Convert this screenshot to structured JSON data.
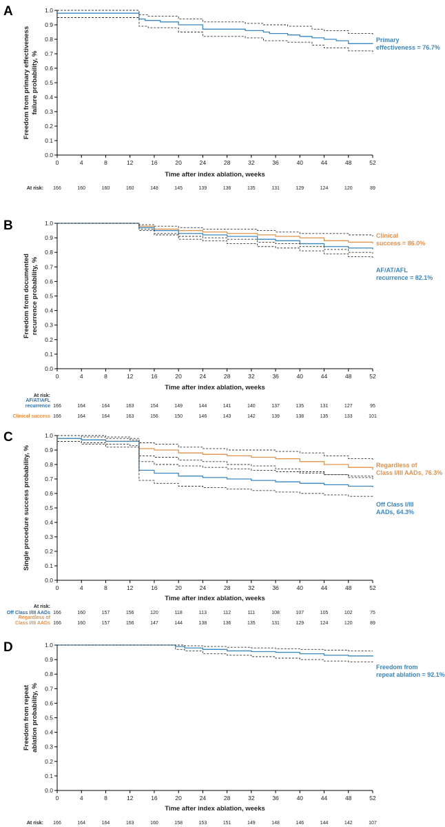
{
  "colors": {
    "blue": "#3a87c0",
    "orange": "#e0924a",
    "ci": "#333333",
    "axis": "#000000",
    "risk_blue": "#2f6fa6"
  },
  "x_axis_label": "Time after index ablation, weeks",
  "at_risk_label": "At risk:",
  "chart_data": [
    {
      "type": "line",
      "title": "A",
      "xlabel": "Time after index ablation, weeks",
      "ylabel": [
        "Freedom from primary effectiveness",
        "failure probability, %"
      ],
      "xlim": [
        0,
        52
      ],
      "ylim": [
        0,
        1.0
      ],
      "xticks": [
        0,
        4,
        8,
        12,
        16,
        20,
        24,
        28,
        32,
        36,
        40,
        44,
        48,
        52
      ],
      "yticks": [
        0.0,
        0.1,
        0.2,
        0.3,
        0.4,
        0.5,
        0.6,
        0.7,
        0.8,
        0.9,
        1.0
      ],
      "series": [
        {
          "name": "Primary effectiveness = 76.7%",
          "color": "#3a87c0",
          "style": "solid",
          "x": [
            0,
            13,
            13.5,
            14.5,
            17,
            20,
            24,
            31,
            34,
            35,
            38,
            40,
            42,
            44,
            46,
            48,
            52
          ],
          "y": [
            0.98,
            0.98,
            0.94,
            0.93,
            0.92,
            0.9,
            0.87,
            0.86,
            0.85,
            0.84,
            0.83,
            0.82,
            0.81,
            0.8,
            0.79,
            0.77,
            0.767
          ]
        },
        {
          "color": "#333333",
          "style": "dashed",
          "x": [
            0,
            13,
            13.5,
            15,
            20,
            24,
            31,
            34,
            38,
            42,
            44,
            48,
            52
          ],
          "y": [
            1.0,
            1.0,
            0.97,
            0.96,
            0.94,
            0.92,
            0.91,
            0.9,
            0.89,
            0.87,
            0.86,
            0.84,
            0.83
          ]
        },
        {
          "color": "#333333",
          "style": "dashed",
          "x": [
            0,
            13,
            13.5,
            15,
            20,
            24,
            31,
            34,
            38,
            42,
            44,
            48,
            52
          ],
          "y": [
            0.95,
            0.95,
            0.89,
            0.88,
            0.85,
            0.82,
            0.81,
            0.79,
            0.78,
            0.76,
            0.74,
            0.72,
            0.7
          ]
        }
      ],
      "annotations": [
        {
          "lines": [
            "Primary",
            "effectiveness = 76.7%"
          ],
          "color": "#3a87c0"
        }
      ],
      "at_risk": [
        {
          "label": "",
          "color": "#222222",
          "values": [
            "166",
            "160",
            "160",
            "160",
            "148",
            "145",
            "139",
            "136",
            "135",
            "131",
            "129",
            "124",
            "120",
            "89"
          ]
        }
      ]
    },
    {
      "type": "line",
      "title": "B",
      "xlabel": "Time after index ablation, weeks",
      "ylabel": [
        "Freedom from documented",
        "recurrence probability, %"
      ],
      "xlim": [
        0,
        52
      ],
      "ylim": [
        0,
        1.0
      ],
      "xticks": [
        0,
        4,
        8,
        12,
        16,
        20,
        24,
        28,
        32,
        36,
        40,
        44,
        48,
        52
      ],
      "yticks": [
        0.0,
        0.1,
        0.2,
        0.3,
        0.4,
        0.5,
        0.6,
        0.7,
        0.8,
        0.9,
        1.0
      ],
      "series": [
        {
          "name": "Clinical success = 86.0%",
          "color": "#e0924a",
          "style": "solid",
          "x": [
            0,
            13,
            13.5,
            16,
            20,
            24,
            28,
            33,
            36,
            40,
            44,
            48,
            52
          ],
          "y": [
            1.0,
            1.0,
            0.98,
            0.96,
            0.95,
            0.94,
            0.93,
            0.92,
            0.91,
            0.9,
            0.88,
            0.87,
            0.86
          ]
        },
        {
          "name": "AF/AT/AFL recurrence = 82.1%",
          "color": "#3a87c0",
          "style": "solid",
          "x": [
            0,
            13,
            13.5,
            16,
            20,
            24,
            28,
            33,
            36,
            40,
            44,
            48,
            52
          ],
          "y": [
            1.0,
            1.0,
            0.97,
            0.95,
            0.93,
            0.92,
            0.91,
            0.89,
            0.88,
            0.86,
            0.84,
            0.83,
            0.821
          ]
        },
        {
          "color": "#333333",
          "style": "dashed",
          "x": [
            0,
            13,
            13.5,
            16,
            20,
            24,
            28,
            33,
            36,
            40,
            44,
            48,
            52
          ],
          "y": [
            1.0,
            1.0,
            0.99,
            0.98,
            0.97,
            0.96,
            0.96,
            0.95,
            0.94,
            0.93,
            0.93,
            0.92,
            0.91
          ]
        },
        {
          "color": "#333333",
          "style": "dashed",
          "x": [
            0,
            13,
            13.5,
            16,
            20,
            24,
            28,
            33,
            36,
            40,
            44,
            48,
            52
          ],
          "y": [
            1.0,
            1.0,
            0.96,
            0.93,
            0.91,
            0.9,
            0.89,
            0.87,
            0.86,
            0.84,
            0.82,
            0.8,
            0.79
          ]
        },
        {
          "color": "#333333",
          "style": "dashed",
          "x": [
            0,
            13,
            13.5,
            16,
            20,
            24,
            28,
            33,
            36,
            40,
            44,
            48,
            52
          ],
          "y": [
            1.0,
            1.0,
            0.95,
            0.92,
            0.89,
            0.88,
            0.86,
            0.84,
            0.83,
            0.81,
            0.79,
            0.77,
            0.76
          ]
        }
      ],
      "annotations": [
        {
          "lines": [
            "Clinical",
            "success = 86.0%"
          ],
          "color": "#e0924a"
        },
        {
          "lines": [
            "AF/AT/AFL",
            "recurrence = 82.1%"
          ],
          "color": "#3a87c0"
        }
      ],
      "at_risk": [
        {
          "label": [
            "AF/AT/AFL",
            "recurrence"
          ],
          "color": "#2f6fa6",
          "values": [
            "166",
            "164",
            "164",
            "163",
            "154",
            "149",
            "144",
            "141",
            "140",
            "137",
            "135",
            "131",
            "127",
            "95"
          ]
        },
        {
          "label": [
            "Clinical success"
          ],
          "color": "#e0924a",
          "values": [
            "166",
            "164",
            "164",
            "163",
            "156",
            "150",
            "146",
            "143",
            "142",
            "139",
            "138",
            "135",
            "133",
            "101"
          ]
        }
      ]
    },
    {
      "type": "line",
      "title": "C",
      "xlabel": "Time after index ablation, weeks",
      "ylabel": [
        "Single procedure success probability, %"
      ],
      "xlim": [
        0,
        52
      ],
      "ylim": [
        0,
        1.0
      ],
      "xticks": [
        0,
        4,
        8,
        12,
        16,
        20,
        24,
        28,
        32,
        36,
        40,
        44,
        48,
        52
      ],
      "yticks": [
        0.0,
        0.1,
        0.2,
        0.3,
        0.4,
        0.5,
        0.6,
        0.7,
        0.8,
        0.9,
        1.0
      ],
      "series": [
        {
          "name": "Regardless of Class I/III AADs, 76.3%",
          "color": "#e0924a",
          "style": "solid",
          "x": [
            0,
            4,
            8,
            12,
            13,
            13.5,
            16,
            20,
            24,
            28,
            32,
            36,
            40,
            44,
            48,
            52
          ],
          "y": [
            0.98,
            0.97,
            0.96,
            0.96,
            0.96,
            0.91,
            0.9,
            0.88,
            0.87,
            0.86,
            0.85,
            0.84,
            0.82,
            0.8,
            0.78,
            0.763
          ]
        },
        {
          "name": "Off Class I/III AADs, 64.3%",
          "color": "#3a87c0",
          "style": "solid",
          "x": [
            0,
            4,
            8,
            12,
            13,
            13.5,
            16,
            20,
            24,
            28,
            32,
            36,
            40,
            44,
            48,
            52
          ],
          "y": [
            0.98,
            0.97,
            0.96,
            0.96,
            0.96,
            0.76,
            0.74,
            0.72,
            0.71,
            0.7,
            0.69,
            0.68,
            0.67,
            0.66,
            0.65,
            0.643
          ]
        },
        {
          "color": "#333333",
          "style": "dashed",
          "x": [
            0,
            4,
            8,
            12,
            13,
            13.5,
            16,
            20,
            24,
            28,
            32,
            36,
            40,
            44,
            48,
            52
          ],
          "y": [
            1.0,
            1.0,
            0.99,
            0.98,
            0.98,
            0.95,
            0.94,
            0.92,
            0.91,
            0.9,
            0.9,
            0.89,
            0.88,
            0.86,
            0.84,
            0.83
          ]
        },
        {
          "color": "#333333",
          "style": "dashed",
          "x": [
            0,
            4,
            8,
            12,
            13,
            13.5,
            16,
            20,
            24,
            28,
            32,
            36,
            40,
            44,
            48,
            52
          ],
          "y": [
            0.96,
            0.95,
            0.94,
            0.93,
            0.93,
            0.86,
            0.85,
            0.83,
            0.82,
            0.8,
            0.79,
            0.77,
            0.75,
            0.73,
            0.71,
            0.69
          ]
        },
        {
          "color": "#333333",
          "style": "dashed",
          "x": [
            0,
            4,
            8,
            12,
            13,
            13.5,
            16,
            20,
            24,
            28,
            32,
            36,
            40,
            44,
            48,
            52
          ],
          "y": [
            1.0,
            0.99,
            0.98,
            0.97,
            0.97,
            0.82,
            0.8,
            0.79,
            0.78,
            0.77,
            0.76,
            0.75,
            0.74,
            0.73,
            0.72,
            0.71
          ]
        },
        {
          "color": "#333333",
          "style": "dashed",
          "x": [
            0,
            4,
            8,
            12,
            13,
            13.5,
            16,
            20,
            24,
            28,
            32,
            36,
            40,
            44,
            48,
            52
          ],
          "y": [
            0.96,
            0.94,
            0.92,
            0.92,
            0.92,
            0.69,
            0.67,
            0.65,
            0.64,
            0.63,
            0.62,
            0.61,
            0.6,
            0.59,
            0.58,
            0.57
          ]
        }
      ],
      "annotations": [
        {
          "lines": [
            "Regardless of",
            "Class I/III AADs, 76.3%"
          ],
          "color": "#e0924a"
        },
        {
          "lines": [
            "Off Class I/III",
            "AADs, 64.3%"
          ],
          "color": "#3a87c0"
        }
      ],
      "at_risk": [
        {
          "label": [
            "Off Class I/III AADs"
          ],
          "color": "#2f6fa6",
          "values": [
            "166",
            "160",
            "157",
            "156",
            "120",
            "118",
            "113",
            "112",
            "111",
            "108",
            "107",
            "105",
            "102",
            "75"
          ]
        },
        {
          "label": [
            "Regardless of",
            "Class I/III AADs"
          ],
          "color": "#e0924a",
          "values": [
            "166",
            "160",
            "157",
            "156",
            "147",
            "144",
            "138",
            "136",
            "135",
            "131",
            "129",
            "124",
            "120",
            "89"
          ]
        }
      ]
    },
    {
      "type": "line",
      "title": "D",
      "xlabel": "Time after index ablation, weeks",
      "ylabel": [
        "Freedom from repeat",
        "ablation probability, %"
      ],
      "xlim": [
        0,
        52
      ],
      "ylim": [
        0,
        1.0
      ],
      "xticks": [
        0,
        4,
        8,
        12,
        16,
        20,
        24,
        28,
        32,
        36,
        40,
        44,
        48,
        52
      ],
      "yticks": [
        0.0,
        0.1,
        0.2,
        0.3,
        0.4,
        0.5,
        0.6,
        0.7,
        0.8,
        0.9,
        1.0
      ],
      "series": [
        {
          "name": "Freedom from repeat ablation = 92.1%",
          "color": "#3a87c0",
          "style": "solid",
          "x": [
            0,
            19,
            19.5,
            21,
            24,
            28,
            32,
            36,
            40,
            44,
            48,
            52
          ],
          "y": [
            1.0,
            1.0,
            0.99,
            0.98,
            0.97,
            0.96,
            0.955,
            0.95,
            0.94,
            0.93,
            0.925,
            0.921
          ]
        },
        {
          "color": "#333333",
          "style": "dashed",
          "x": [
            0,
            19,
            19.5,
            21,
            24,
            28,
            32,
            36,
            40,
            44,
            48,
            52
          ],
          "y": [
            1.0,
            1.0,
            1.0,
            0.995,
            0.99,
            0.985,
            0.98,
            0.975,
            0.97,
            0.965,
            0.96,
            0.96
          ]
        },
        {
          "color": "#333333",
          "style": "dashed",
          "x": [
            0,
            19,
            19.5,
            21,
            24,
            28,
            32,
            36,
            40,
            44,
            48,
            52
          ],
          "y": [
            1.0,
            1.0,
            0.97,
            0.96,
            0.94,
            0.93,
            0.92,
            0.91,
            0.9,
            0.89,
            0.885,
            0.88
          ]
        }
      ],
      "annotations": [
        {
          "lines": [
            "Freedom from",
            "repeat ablation = 92.1%"
          ],
          "color": "#3a87c0"
        }
      ],
      "at_risk": [
        {
          "label": "",
          "color": "#222222",
          "values": [
            "166",
            "164",
            "164",
            "163",
            "160",
            "158",
            "153",
            "151",
            "149",
            "148",
            "146",
            "144",
            "142",
            "107"
          ]
        }
      ]
    }
  ]
}
